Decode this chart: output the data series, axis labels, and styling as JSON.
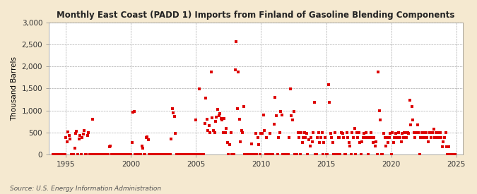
{
  "title": "Monthly East Coast (PADD 1) Imports from Finland of Gasoline Blending Components",
  "ylabel": "Thousand Barrels",
  "source": "Source: U.S. Energy Information Administration",
  "bg_color": "#f5e9d0",
  "plot_bg_color": "#ffffff",
  "marker_color": "#dd0000",
  "marker_size": 3.5,
  "ylim": [
    0,
    3000
  ],
  "yticks": [
    0,
    500,
    1000,
    1500,
    2000,
    2500,
    3000
  ],
  "ytick_labels": [
    "0",
    "500",
    "1,000",
    "1,500",
    "2,000",
    "2,500",
    "3,000"
  ],
  "xlim_start": 1993.7,
  "xlim_end": 2025.5,
  "xticks": [
    1995,
    2000,
    2005,
    2010,
    2015,
    2020,
    2025
  ],
  "data": [
    [
      1994.0,
      0
    ],
    [
      1994.08,
      0
    ],
    [
      1994.17,
      0
    ],
    [
      1994.25,
      0
    ],
    [
      1994.33,
      0
    ],
    [
      1994.42,
      0
    ],
    [
      1994.5,
      0
    ],
    [
      1994.58,
      0
    ],
    [
      1994.67,
      0
    ],
    [
      1994.75,
      0
    ],
    [
      1994.83,
      0
    ],
    [
      1994.92,
      0
    ],
    [
      1995.0,
      380
    ],
    [
      1995.08,
      290
    ],
    [
      1995.17,
      520
    ],
    [
      1995.25,
      440
    ],
    [
      1995.33,
      350
    ],
    [
      1995.42,
      0
    ],
    [
      1995.5,
      0
    ],
    [
      1995.58,
      0
    ],
    [
      1995.67,
      140
    ],
    [
      1995.75,
      480
    ],
    [
      1995.83,
      530
    ],
    [
      1995.92,
      0
    ],
    [
      1996.0,
      350
    ],
    [
      1996.08,
      430
    ],
    [
      1996.17,
      0
    ],
    [
      1996.25,
      380
    ],
    [
      1996.33,
      460
    ],
    [
      1996.42,
      540
    ],
    [
      1996.5,
      0
    ],
    [
      1996.58,
      0
    ],
    [
      1996.67,
      430
    ],
    [
      1996.75,
      490
    ],
    [
      1996.83,
      0
    ],
    [
      1996.92,
      0
    ],
    [
      1997.0,
      0
    ],
    [
      1997.08,
      800
    ],
    [
      1997.17,
      0
    ],
    [
      1997.25,
      0
    ],
    [
      1997.33,
      0
    ],
    [
      1997.42,
      0
    ],
    [
      1997.5,
      0
    ],
    [
      1997.58,
      0
    ],
    [
      1997.67,
      0
    ],
    [
      1997.75,
      0
    ],
    [
      1997.83,
      0
    ],
    [
      1997.92,
      0
    ],
    [
      1998.0,
      0
    ],
    [
      1998.08,
      0
    ],
    [
      1998.17,
      0
    ],
    [
      1998.25,
      0
    ],
    [
      1998.33,
      180
    ],
    [
      1998.42,
      200
    ],
    [
      1998.5,
      0
    ],
    [
      1998.58,
      0
    ],
    [
      1998.67,
      0
    ],
    [
      1998.75,
      0
    ],
    [
      1998.83,
      0
    ],
    [
      1998.92,
      0
    ],
    [
      1999.0,
      0
    ],
    [
      1999.08,
      0
    ],
    [
      1999.17,
      0
    ],
    [
      1999.25,
      0
    ],
    [
      1999.33,
      0
    ],
    [
      1999.42,
      0
    ],
    [
      1999.5,
      0
    ],
    [
      1999.58,
      0
    ],
    [
      1999.67,
      0
    ],
    [
      1999.75,
      0
    ],
    [
      1999.83,
      0
    ],
    [
      1999.92,
      0
    ],
    [
      2000.0,
      0
    ],
    [
      2000.08,
      280
    ],
    [
      2000.17,
      960
    ],
    [
      2000.25,
      970
    ],
    [
      2000.33,
      0
    ],
    [
      2000.42,
      0
    ],
    [
      2000.5,
      0
    ],
    [
      2000.58,
      0
    ],
    [
      2000.67,
      0
    ],
    [
      2000.75,
      0
    ],
    [
      2000.83,
      200
    ],
    [
      2000.92,
      150
    ],
    [
      2001.0,
      0
    ],
    [
      2001.08,
      0
    ],
    [
      2001.17,
      380
    ],
    [
      2001.25,
      400
    ],
    [
      2001.33,
      340
    ],
    [
      2001.42,
      0
    ],
    [
      2001.5,
      0
    ],
    [
      2001.58,
      0
    ],
    [
      2001.67,
      0
    ],
    [
      2001.75,
      0
    ],
    [
      2001.83,
      0
    ],
    [
      2001.92,
      0
    ],
    [
      2002.0,
      0
    ],
    [
      2002.08,
      0
    ],
    [
      2002.17,
      0
    ],
    [
      2002.25,
      0
    ],
    [
      2002.33,
      0
    ],
    [
      2002.42,
      0
    ],
    [
      2002.5,
      0
    ],
    [
      2002.58,
      0
    ],
    [
      2002.67,
      0
    ],
    [
      2002.75,
      0
    ],
    [
      2002.83,
      0
    ],
    [
      2002.92,
      0
    ],
    [
      2003.0,
      0
    ],
    [
      2003.08,
      350
    ],
    [
      2003.17,
      1040
    ],
    [
      2003.25,
      950
    ],
    [
      2003.33,
      860
    ],
    [
      2003.42,
      480
    ],
    [
      2003.5,
      0
    ],
    [
      2003.58,
      0
    ],
    [
      2003.67,
      0
    ],
    [
      2003.75,
      0
    ],
    [
      2003.83,
      0
    ],
    [
      2003.92,
      0
    ],
    [
      2004.0,
      0
    ],
    [
      2004.08,
      0
    ],
    [
      2004.17,
      0
    ],
    [
      2004.25,
      0
    ],
    [
      2004.33,
      0
    ],
    [
      2004.42,
      0
    ],
    [
      2004.5,
      0
    ],
    [
      2004.58,
      0
    ],
    [
      2004.67,
      0
    ],
    [
      2004.75,
      0
    ],
    [
      2004.83,
      0
    ],
    [
      2004.92,
      0
    ],
    [
      2005.0,
      780
    ],
    [
      2005.08,
      0
    ],
    [
      2005.17,
      0
    ],
    [
      2005.25,
      1490
    ],
    [
      2005.33,
      0
    ],
    [
      2005.42,
      0
    ],
    [
      2005.5,
      0
    ],
    [
      2005.58,
      0
    ],
    [
      2005.67,
      700
    ],
    [
      2005.75,
      1290
    ],
    [
      2005.83,
      800
    ],
    [
      2005.92,
      550
    ],
    [
      2006.0,
      650
    ],
    [
      2006.08,
      490
    ],
    [
      2006.17,
      1880
    ],
    [
      2006.25,
      830
    ],
    [
      2006.33,
      550
    ],
    [
      2006.42,
      490
    ],
    [
      2006.5,
      760
    ],
    [
      2006.58,
      850
    ],
    [
      2006.67,
      1020
    ],
    [
      2006.75,
      880
    ],
    [
      2006.83,
      930
    ],
    [
      2006.92,
      820
    ],
    [
      2007.0,
      780
    ],
    [
      2007.08,
      490
    ],
    [
      2007.17,
      820
    ],
    [
      2007.25,
      490
    ],
    [
      2007.33,
      590
    ],
    [
      2007.42,
      280
    ],
    [
      2007.5,
      0
    ],
    [
      2007.58,
      230
    ],
    [
      2007.67,
      490
    ],
    [
      2007.75,
      0
    ],
    [
      2007.83,
      0
    ],
    [
      2007.92,
      0
    ],
    [
      2008.0,
      1920
    ],
    [
      2008.08,
      2560
    ],
    [
      2008.17,
      1040
    ],
    [
      2008.25,
      1880
    ],
    [
      2008.33,
      800
    ],
    [
      2008.42,
      290
    ],
    [
      2008.5,
      540
    ],
    [
      2008.58,
      490
    ],
    [
      2008.67,
      1090
    ],
    [
      2008.75,
      0
    ],
    [
      2008.83,
      0
    ],
    [
      2008.92,
      0
    ],
    [
      2009.0,
      0
    ],
    [
      2009.08,
      0
    ],
    [
      2009.17,
      0
    ],
    [
      2009.25,
      240
    ],
    [
      2009.33,
      0
    ],
    [
      2009.42,
      0
    ],
    [
      2009.5,
      0
    ],
    [
      2009.58,
      480
    ],
    [
      2009.67,
      0
    ],
    [
      2009.75,
      380
    ],
    [
      2009.83,
      230
    ],
    [
      2009.92,
      0
    ],
    [
      2010.0,
      480
    ],
    [
      2010.08,
      480
    ],
    [
      2010.17,
      890
    ],
    [
      2010.25,
      540
    ],
    [
      2010.33,
      0
    ],
    [
      2010.42,
      380
    ],
    [
      2010.5,
      0
    ],
    [
      2010.58,
      0
    ],
    [
      2010.67,
      480
    ],
    [
      2010.75,
      0
    ],
    [
      2010.83,
      0
    ],
    [
      2010.92,
      0
    ],
    [
      2011.0,
      690
    ],
    [
      2011.08,
      1300
    ],
    [
      2011.17,
      880
    ],
    [
      2011.25,
      0
    ],
    [
      2011.33,
      380
    ],
    [
      2011.42,
      490
    ],
    [
      2011.5,
      980
    ],
    [
      2011.58,
      890
    ],
    [
      2011.67,
      0
    ],
    [
      2011.75,
      0
    ],
    [
      2011.83,
      0
    ],
    [
      2011.92,
      0
    ],
    [
      2012.0,
      0
    ],
    [
      2012.08,
      0
    ],
    [
      2012.17,
      390
    ],
    [
      2012.25,
      1490
    ],
    [
      2012.33,
      880
    ],
    [
      2012.42,
      790
    ],
    [
      2012.5,
      980
    ],
    [
      2012.58,
      0
    ],
    [
      2012.67,
      0
    ],
    [
      2012.75,
      0
    ],
    [
      2012.83,
      490
    ],
    [
      2012.92,
      380
    ],
    [
      2013.0,
      0
    ],
    [
      2013.08,
      490
    ],
    [
      2013.17,
      280
    ],
    [
      2013.25,
      380
    ],
    [
      2013.33,
      490
    ],
    [
      2013.42,
      380
    ],
    [
      2013.5,
      480
    ],
    [
      2013.58,
      0
    ],
    [
      2013.67,
      340
    ],
    [
      2013.75,
      190
    ],
    [
      2013.83,
      380
    ],
    [
      2013.92,
      290
    ],
    [
      2014.0,
      490
    ],
    [
      2014.08,
      1190
    ],
    [
      2014.17,
      0
    ],
    [
      2014.25,
      0
    ],
    [
      2014.33,
      390
    ],
    [
      2014.42,
      490
    ],
    [
      2014.5,
      280
    ],
    [
      2014.58,
      380
    ],
    [
      2014.67,
      490
    ],
    [
      2014.75,
      0
    ],
    [
      2014.83,
      280
    ],
    [
      2014.92,
      380
    ],
    [
      2015.0,
      0
    ],
    [
      2015.08,
      0
    ],
    [
      2015.17,
      1580
    ],
    [
      2015.25,
      1180
    ],
    [
      2015.33,
      480
    ],
    [
      2015.42,
      380
    ],
    [
      2015.5,
      280
    ],
    [
      2015.58,
      0
    ],
    [
      2015.67,
      490
    ],
    [
      2015.75,
      0
    ],
    [
      2015.83,
      0
    ],
    [
      2015.92,
      390
    ],
    [
      2016.0,
      380
    ],
    [
      2016.08,
      0
    ],
    [
      2016.17,
      490
    ],
    [
      2016.25,
      480
    ],
    [
      2016.33,
      380
    ],
    [
      2016.42,
      0
    ],
    [
      2016.5,
      0
    ],
    [
      2016.58,
      490
    ],
    [
      2016.67,
      380
    ],
    [
      2016.75,
      280
    ],
    [
      2016.83,
      190
    ],
    [
      2016.92,
      0
    ],
    [
      2017.0,
      490
    ],
    [
      2017.08,
      380
    ],
    [
      2017.17,
      590
    ],
    [
      2017.25,
      0
    ],
    [
      2017.33,
      490
    ],
    [
      2017.42,
      380
    ],
    [
      2017.5,
      490
    ],
    [
      2017.58,
      280
    ],
    [
      2017.67,
      0
    ],
    [
      2017.75,
      290
    ],
    [
      2017.83,
      390
    ],
    [
      2017.92,
      480
    ],
    [
      2018.0,
      380
    ],
    [
      2018.08,
      490
    ],
    [
      2018.17,
      380
    ],
    [
      2018.25,
      0
    ],
    [
      2018.33,
      380
    ],
    [
      2018.42,
      490
    ],
    [
      2018.5,
      380
    ],
    [
      2018.58,
      280
    ],
    [
      2018.67,
      390
    ],
    [
      2018.75,
      190
    ],
    [
      2018.83,
      290
    ],
    [
      2018.92,
      0
    ],
    [
      2019.0,
      1880
    ],
    [
      2019.08,
      990
    ],
    [
      2019.17,
      790
    ],
    [
      2019.25,
      0
    ],
    [
      2019.33,
      0
    ],
    [
      2019.42,
      480
    ],
    [
      2019.5,
      380
    ],
    [
      2019.58,
      190
    ],
    [
      2019.67,
      390
    ],
    [
      2019.75,
      280
    ],
    [
      2019.83,
      390
    ],
    [
      2019.92,
      480
    ],
    [
      2020.0,
      0
    ],
    [
      2020.08,
      490
    ],
    [
      2020.17,
      280
    ],
    [
      2020.25,
      390
    ],
    [
      2020.33,
      480
    ],
    [
      2020.42,
      390
    ],
    [
      2020.5,
      380
    ],
    [
      2020.58,
      490
    ],
    [
      2020.67,
      380
    ],
    [
      2020.75,
      290
    ],
    [
      2020.83,
      480
    ],
    [
      2020.92,
      390
    ],
    [
      2021.0,
      490
    ],
    [
      2021.08,
      490
    ],
    [
      2021.17,
      380
    ],
    [
      2021.25,
      490
    ],
    [
      2021.33,
      480
    ],
    [
      2021.42,
      1240
    ],
    [
      2021.5,
      680
    ],
    [
      2021.58,
      1090
    ],
    [
      2021.67,
      780
    ],
    [
      2021.75,
      490
    ],
    [
      2021.83,
      390
    ],
    [
      2021.92,
      490
    ],
    [
      2022.0,
      680
    ],
    [
      2022.08,
      490
    ],
    [
      2022.17,
      0
    ],
    [
      2022.25,
      380
    ],
    [
      2022.33,
      490
    ],
    [
      2022.42,
      380
    ],
    [
      2022.5,
      490
    ],
    [
      2022.58,
      380
    ],
    [
      2022.67,
      490
    ],
    [
      2022.75,
      380
    ],
    [
      2022.83,
      290
    ],
    [
      2022.92,
      490
    ],
    [
      2023.0,
      490
    ],
    [
      2023.08,
      380
    ],
    [
      2023.17,
      490
    ],
    [
      2023.25,
      580
    ],
    [
      2023.33,
      390
    ],
    [
      2023.42,
      490
    ],
    [
      2023.5,
      380
    ],
    [
      2023.58,
      490
    ],
    [
      2023.67,
      380
    ],
    [
      2023.75,
      490
    ],
    [
      2023.83,
      390
    ],
    [
      2023.92,
      180
    ],
    [
      2024.0,
      290
    ],
    [
      2024.08,
      390
    ],
    [
      2024.17,
      490
    ],
    [
      2024.25,
      180
    ],
    [
      2024.33,
      0
    ],
    [
      2024.42,
      180
    ],
    [
      2024.5,
      0
    ],
    [
      2024.58,
      0
    ],
    [
      2024.67,
      0
    ],
    [
      2024.75,
      0
    ],
    [
      2024.83,
      0
    ],
    [
      2024.92,
      0
    ]
  ]
}
